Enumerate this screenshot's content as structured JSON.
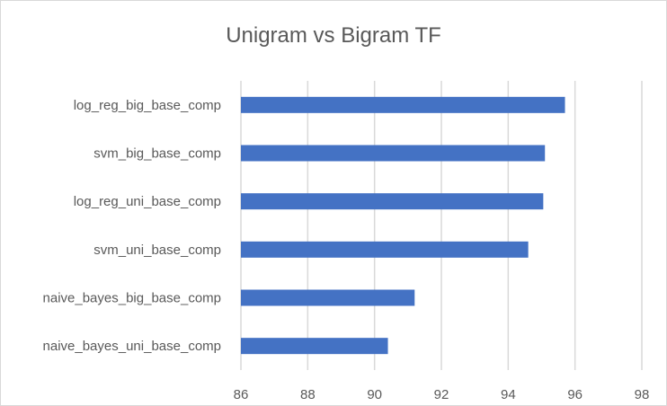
{
  "chart_data": {
    "type": "bar",
    "orientation": "horizontal",
    "title": "Unigram vs Bigram TF",
    "xlabel": "",
    "ylabel": "",
    "categories": [
      "log_reg_big_base_comp",
      "svm_big_base_comp",
      "log_reg_uni_base_comp",
      "svm_uni_base_comp",
      "naive_bayes_big_base_comp",
      "naive_bayes_uni_base_comp"
    ],
    "values": [
      95.7,
      95.1,
      95.05,
      94.6,
      91.2,
      90.4
    ],
    "xlim": [
      86,
      98
    ],
    "xticks": [
      "86",
      "88",
      "90",
      "92",
      "94",
      "96",
      "98"
    ],
    "grid": "vertical",
    "legend": "none",
    "bar_color": "#4472C4"
  }
}
